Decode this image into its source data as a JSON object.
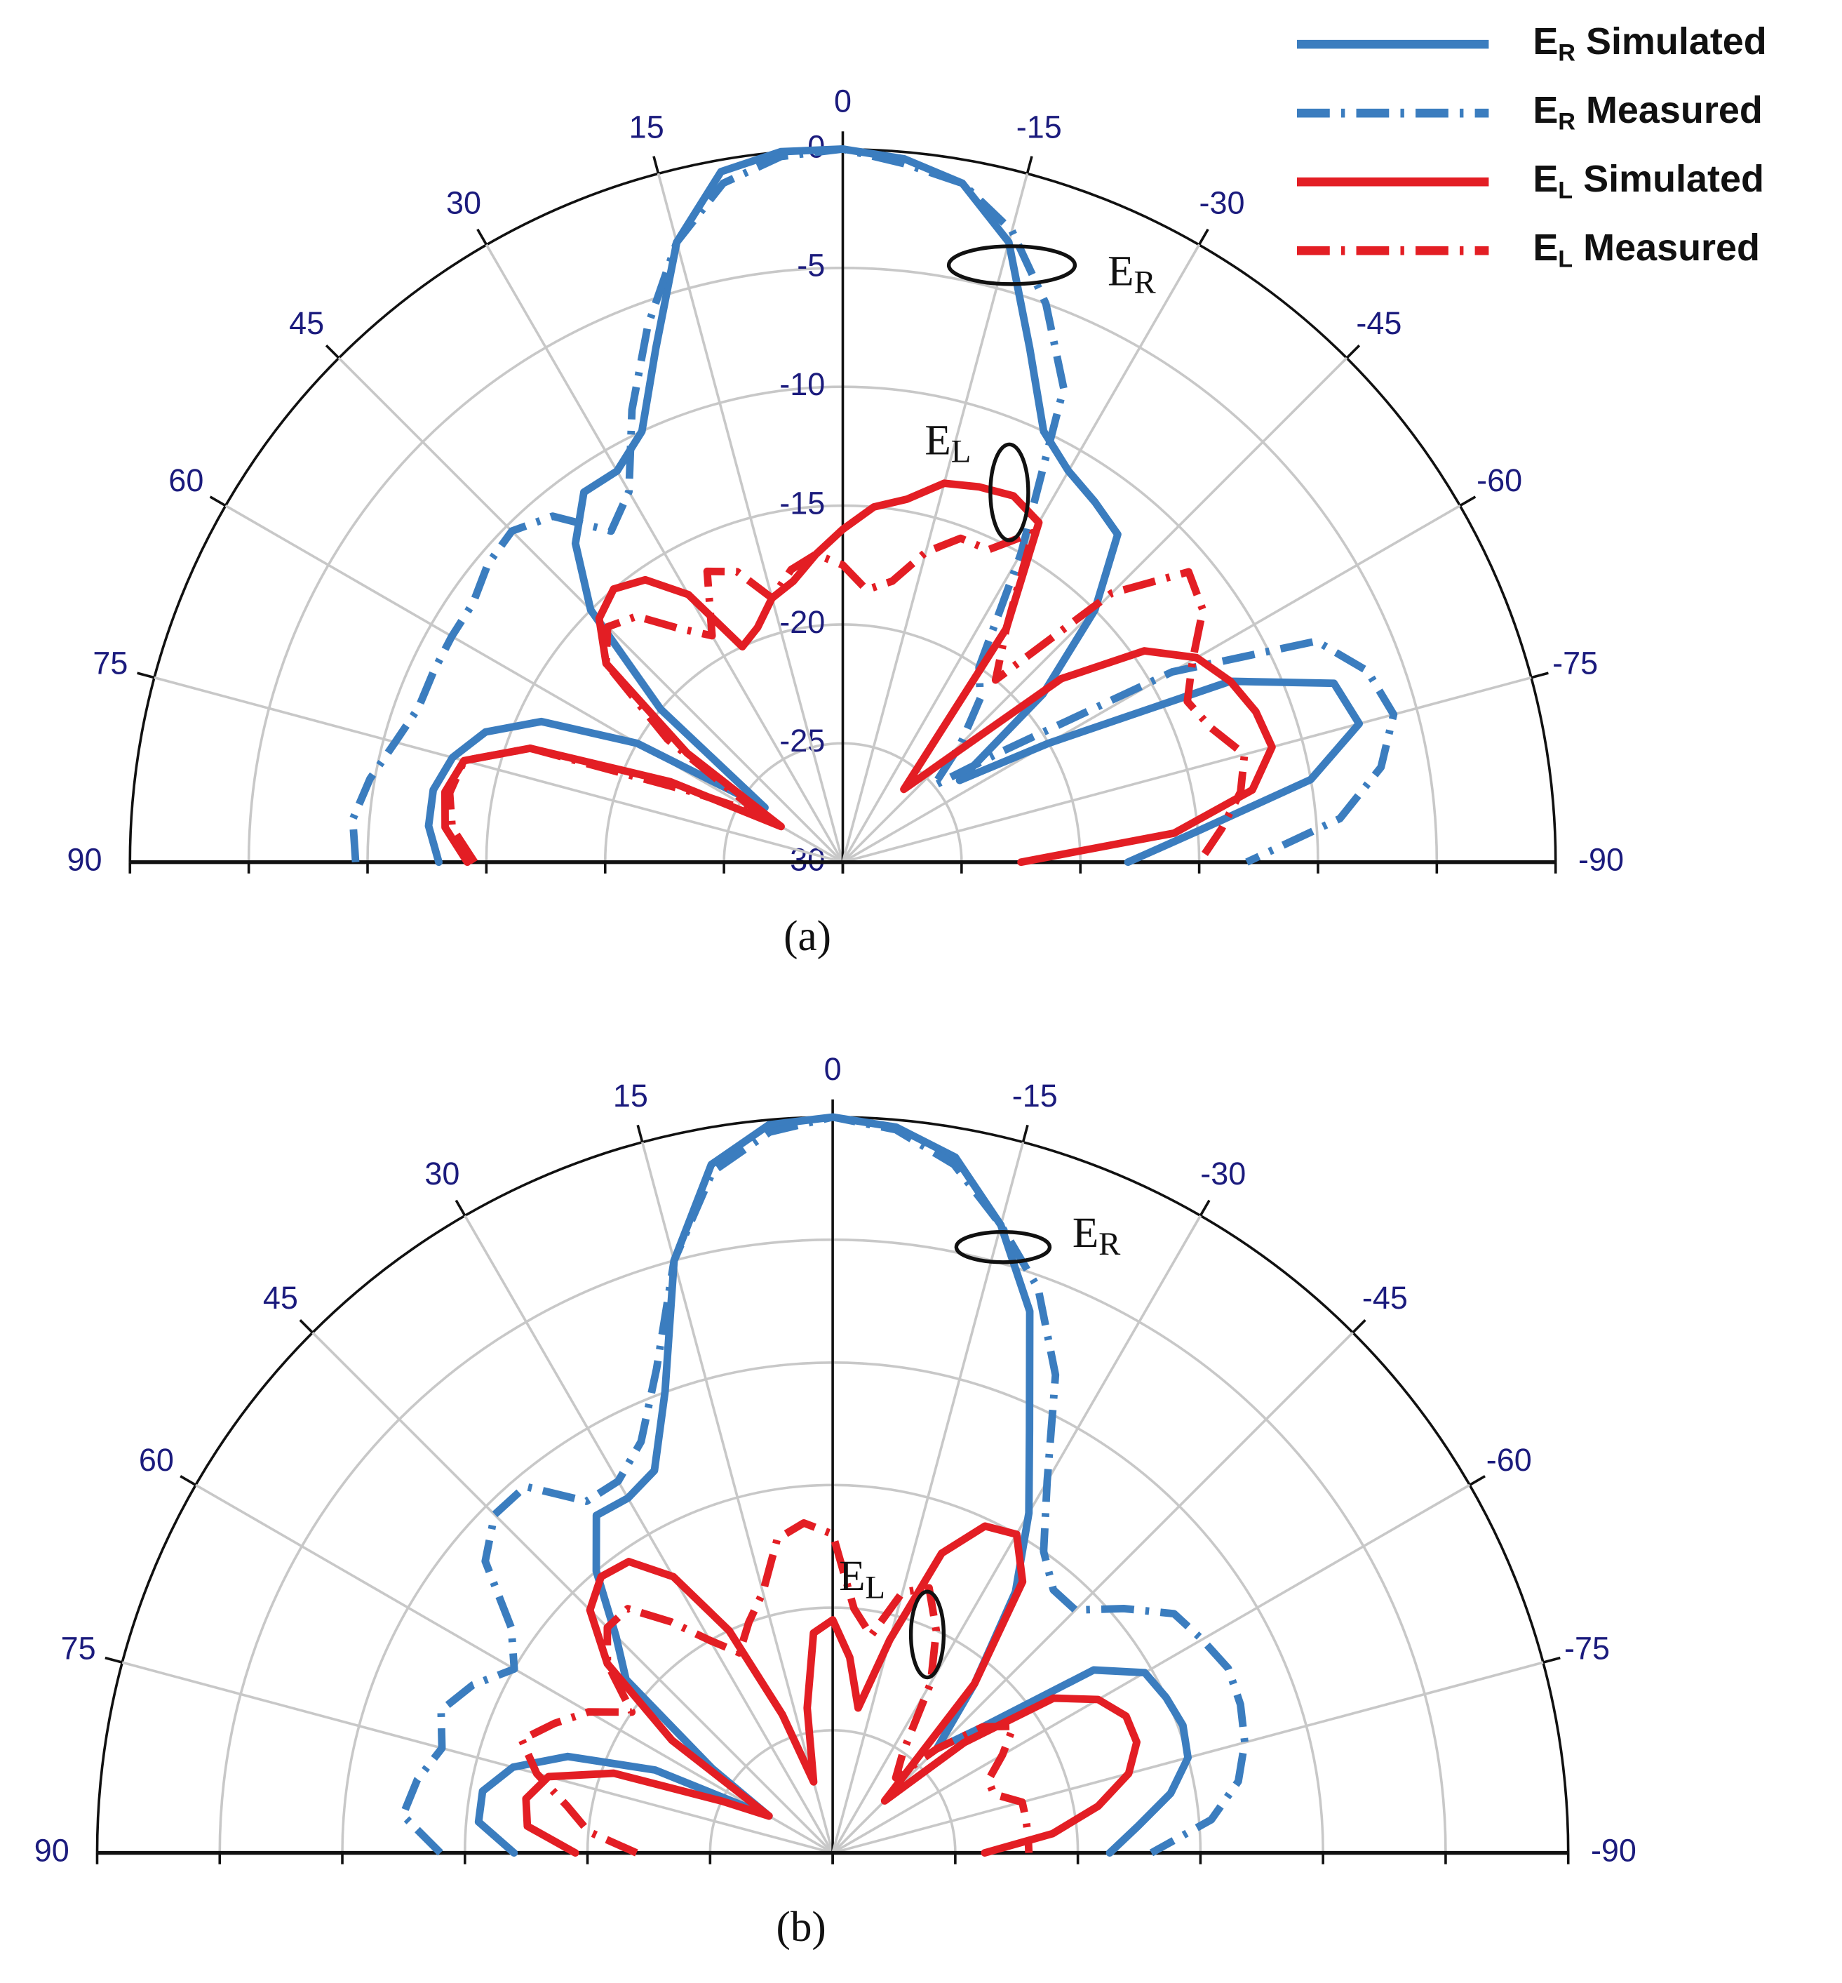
{
  "chart_data": [
    {
      "type": "polar",
      "label": "(a)",
      "theta": [
        90,
        85,
        80,
        75,
        70,
        65,
        60,
        55,
        50,
        45,
        40,
        35,
        30,
        25,
        20,
        15,
        10,
        5,
        0,
        -5,
        -10,
        -15,
        -20,
        -25,
        -30,
        -35,
        -40,
        -45,
        -50,
        -55,
        -60,
        -65,
        -70,
        -75,
        -80,
        -85,
        -90
      ],
      "rlim": [
        -30,
        0
      ],
      "rticks": [
        -30,
        -25,
        -20,
        -15,
        -10,
        -5,
        0
      ],
      "radial_labels": true,
      "thetaticks": [
        90,
        75,
        60,
        45,
        30,
        15,
        0,
        -15,
        -30,
        -45,
        -60,
        -75,
        -90
      ],
      "grid": true,
      "legend": "top-right",
      "annotations": [
        {
          "text": "ER"
        },
        {
          "text": "EL"
        }
      ],
      "series": [
        {
          "name": "ER Simulated",
          "color": "#3b7dbf",
          "linestyle": "solid",
          "values": [
            -13,
            -12.5,
            -12.5,
            -13,
            -14,
            -16,
            -20,
            -26,
            -20,
            -15,
            -12.5,
            -11,
            -11,
            -10,
            -7,
            -3,
            -0.5,
            0,
            0,
            -0.3,
            -1,
            -3,
            -7,
            -10,
            -11,
            -11.5,
            -12,
            -15,
            -19,
            -24,
            -20,
            -12,
            -8,
            -7.5,
            -10,
            -15,
            -18
          ]
        },
        {
          "name": "ER Measured",
          "color": "#3b7dbf",
          "linestyle": "dashdot",
          "values": [
            -9.5,
            -9.3,
            -9.8,
            -10.5,
            -11,
            -11,
            -11,
            -11,
            -10.5,
            -10.3,
            -11,
            -13,
            -12,
            -9,
            -6,
            -3,
            -1,
            -0.2,
            0,
            -0.5,
            -1,
            -2.5,
            -5,
            -8,
            -15,
            -20,
            -21,
            -23,
            -25,
            -22,
            -14,
            -8,
            -6.5,
            -6,
            -7,
            -9,
            -13
          ]
        },
        {
          "name": "EL Simulated",
          "color": "#e31e24",
          "linestyle": "solid",
          "values": [
            -14.2,
            -13.2,
            -13,
            -13.5,
            -16,
            -22,
            -27,
            -22,
            -17,
            -15.5,
            -15,
            -15.5,
            -17,
            -20,
            -19.5,
            -18.5,
            -18,
            -17,
            -16,
            -15,
            -14.5,
            -13.5,
            -13.2,
            -13,
            -13.5,
            -18,
            -26,
            -24,
            -18,
            -14.5,
            -12.8,
            -12,
            -11.5,
            -11.3,
            -12.5,
            -16,
            -22.5
          ]
        },
        {
          "name": "EL Measured",
          "color": "#e31e24",
          "linestyle": "dashdot",
          "values": [
            -14.5,
            -13.5,
            -13.2,
            -13.5,
            -16,
            -23,
            -26,
            -21,
            -17,
            -16,
            -16.5,
            -18,
            -19,
            -16.5,
            -17,
            -18.5,
            -17.5,
            -17,
            -17.5,
            -18.5,
            -18,
            -16.5,
            -15.5,
            -15.5,
            -14,
            -18,
            -20,
            -14,
            -11,
            -11.5,
            -13,
            -14,
            -13.5,
            -12.5,
            -13,
            -14,
            -15
          ]
        }
      ]
    },
    {
      "type": "polar",
      "label": "(b)",
      "theta": [
        90,
        85,
        80,
        75,
        70,
        65,
        60,
        55,
        50,
        45,
        40,
        35,
        30,
        25,
        20,
        15,
        10,
        5,
        0,
        -5,
        -10,
        -15,
        -20,
        -25,
        -30,
        -35,
        -40,
        -45,
        -50,
        -55,
        -60,
        -65,
        -70,
        -75,
        -80,
        -85,
        -90
      ],
      "rlim": [
        -30,
        0
      ],
      "rticks": [
        -30,
        -25,
        -20,
        -15,
        -10,
        -5,
        0
      ],
      "radial_labels": false,
      "thetaticks": [
        90,
        75,
        60,
        45,
        30,
        15,
        0,
        -15,
        -30,
        -45,
        -60,
        -75,
        -90
      ],
      "grid": true,
      "annotations": [
        {
          "text": "ER"
        },
        {
          "text": "EL"
        }
      ],
      "series": [
        {
          "color": "#3b7dbf",
          "linestyle": "solid",
          "values": [
            -17,
            -15.5,
            -15.5,
            -16.5,
            -18.5,
            -22,
            -27,
            -24,
            -19,
            -17.5,
            -15,
            -13.2,
            -13.3,
            -12.8,
            -10,
            -5,
            -1.5,
            -0.2,
            0,
            -0.3,
            -1.2,
            -3.5,
            -6.5,
            -11,
            -14,
            -17,
            -21,
            -24,
            -22,
            -17,
            -15.3,
            -15,
            -14.8,
            -15,
            -16,
            -17.5,
            -18.7
          ]
        },
        {
          "color": "#3b7dbf",
          "linestyle": "dashdot",
          "values": [
            -14,
            -12.4,
            -12.8,
            -13.5,
            -13,
            -13.8,
            -15,
            -14,
            -11.5,
            -10.5,
            -10.5,
            -12.5,
            -12.5,
            -11.5,
            -9,
            -5,
            -1.8,
            -0.5,
            0,
            -0.4,
            -1.5,
            -3.5,
            -5.5,
            -8.5,
            -12.5,
            -15,
            -16,
            -16,
            -14.5,
            -13,
            -12.6,
            -12.2,
            -12.3,
            -12.6,
            -13.2,
            -14.5,
            -17
          ]
        },
        {
          "color": "#e31e24",
          "linestyle": "solid",
          "values": [
            -19.5,
            -17.5,
            -17.3,
            -18,
            -20.5,
            -25,
            -27,
            -22,
            -18,
            -16,
            -15.3,
            -15.5,
            -17,
            -20,
            -24,
            -27,
            -24,
            -21,
            -20.5,
            -22,
            -24,
            -21,
            -17,
            -15.3,
            -15,
            -16.5,
            -21,
            -27,
            -23,
            -19,
            -17.5,
            -16.8,
            -16.8,
            -17.5,
            -19,
            -21,
            -23.8
          ]
        },
        {
          "color": "#e31e24",
          "linestyle": "dashdot",
          "values": [
            -22,
            -20,
            -19,
            -17.5,
            -16.5,
            -17.5,
            -18.5,
            -20,
            -18,
            -17,
            -17,
            -18.5,
            -20,
            -21,
            -20,
            -19,
            -17,
            -16.5,
            -17,
            -20,
            -21,
            -19,
            -18.5,
            -20,
            -22,
            -25,
            -26,
            -24,
            -22,
            -21,
            -22,
            -23,
            -23,
            -22,
            -22,
            -22,
            -22
          ]
        }
      ]
    }
  ]
}
